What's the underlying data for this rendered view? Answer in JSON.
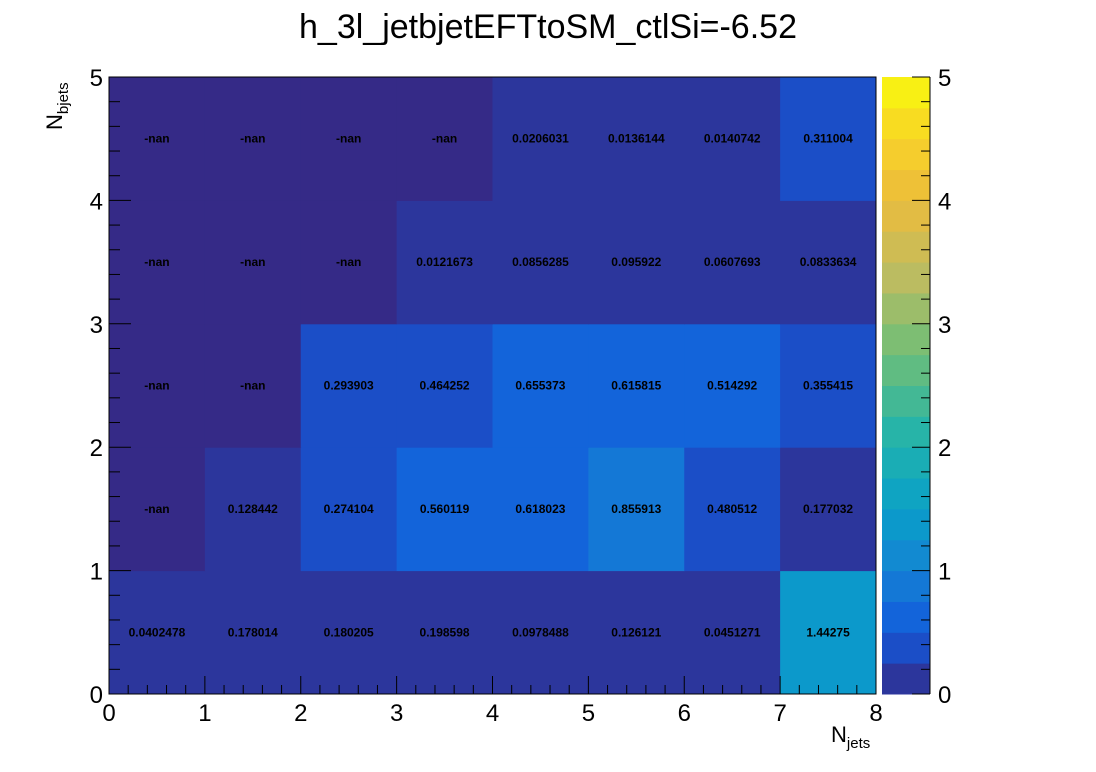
{
  "chart_data": {
    "type": "heatmap",
    "title": "h_3l_jetbjetEFTtoSM_ctlSi=-6.52",
    "xlabel": {
      "main": "N",
      "sub": "jets"
    },
    "ylabel": {
      "main": "N",
      "sub": "bjets"
    },
    "x_edges": [
      0,
      1,
      2,
      3,
      4,
      5,
      6,
      7,
      8
    ],
    "y_edges": [
      0,
      1,
      2,
      3,
      4,
      5
    ],
    "xlim": [
      0,
      8
    ],
    "ylim": [
      0,
      5
    ],
    "zlim": [
      0,
      5
    ],
    "x_ticks": [
      "0",
      "1",
      "2",
      "3",
      "4",
      "5",
      "6",
      "7",
      "8"
    ],
    "y_ticks": [
      "0",
      "1",
      "2",
      "3",
      "4",
      "5"
    ],
    "z_ticks": [
      "0",
      "1",
      "2",
      "3",
      "4",
      "5"
    ],
    "palette": "parula",
    "palette_levels": 20,
    "cells": [
      {
        "x": 0.5,
        "y": 0.5,
        "value": 0.0402478,
        "label": "0.0402478"
      },
      {
        "x": 1.5,
        "y": 0.5,
        "value": 0.178014,
        "label": "0.178014"
      },
      {
        "x": 2.5,
        "y": 0.5,
        "value": 0.180205,
        "label": "0.180205"
      },
      {
        "x": 3.5,
        "y": 0.5,
        "value": 0.198598,
        "label": "0.198598"
      },
      {
        "x": 4.5,
        "y": 0.5,
        "value": 0.0978488,
        "label": "0.0978488"
      },
      {
        "x": 5.5,
        "y": 0.5,
        "value": 0.126121,
        "label": "0.126121"
      },
      {
        "x": 6.5,
        "y": 0.5,
        "value": 0.0451271,
        "label": "0.0451271"
      },
      {
        "x": 7.5,
        "y": 0.5,
        "value": 1.44275,
        "label": "1.44275"
      },
      {
        "x": 0.5,
        "y": 1.5,
        "value": null,
        "label": "-nan"
      },
      {
        "x": 1.5,
        "y": 1.5,
        "value": 0.128442,
        "label": "0.128442"
      },
      {
        "x": 2.5,
        "y": 1.5,
        "value": 0.274104,
        "label": "0.274104"
      },
      {
        "x": 3.5,
        "y": 1.5,
        "value": 0.560119,
        "label": "0.560119"
      },
      {
        "x": 4.5,
        "y": 1.5,
        "value": 0.618023,
        "label": "0.618023"
      },
      {
        "x": 5.5,
        "y": 1.5,
        "value": 0.855913,
        "label": "0.855913"
      },
      {
        "x": 6.5,
        "y": 1.5,
        "value": 0.480512,
        "label": "0.480512"
      },
      {
        "x": 7.5,
        "y": 1.5,
        "value": 0.177032,
        "label": "0.177032"
      },
      {
        "x": 0.5,
        "y": 2.5,
        "value": null,
        "label": "-nan"
      },
      {
        "x": 1.5,
        "y": 2.5,
        "value": null,
        "label": "-nan"
      },
      {
        "x": 2.5,
        "y": 2.5,
        "value": 0.293903,
        "label": "0.293903"
      },
      {
        "x": 3.5,
        "y": 2.5,
        "value": 0.464252,
        "label": "0.464252"
      },
      {
        "x": 4.5,
        "y": 2.5,
        "value": 0.655373,
        "label": "0.655373"
      },
      {
        "x": 5.5,
        "y": 2.5,
        "value": 0.615815,
        "label": "0.615815"
      },
      {
        "x": 6.5,
        "y": 2.5,
        "value": 0.514292,
        "label": "0.514292"
      },
      {
        "x": 7.5,
        "y": 2.5,
        "value": 0.355415,
        "label": "0.355415"
      },
      {
        "x": 0.5,
        "y": 3.5,
        "value": null,
        "label": "-nan"
      },
      {
        "x": 1.5,
        "y": 3.5,
        "value": null,
        "label": "-nan"
      },
      {
        "x": 2.5,
        "y": 3.5,
        "value": null,
        "label": "-nan"
      },
      {
        "x": 3.5,
        "y": 3.5,
        "value": 0.0121673,
        "label": "0.0121673"
      },
      {
        "x": 4.5,
        "y": 3.5,
        "value": 0.0856285,
        "label": "0.0856285"
      },
      {
        "x": 5.5,
        "y": 3.5,
        "value": 0.095922,
        "label": "0.095922"
      },
      {
        "x": 6.5,
        "y": 3.5,
        "value": 0.0607693,
        "label": "0.0607693"
      },
      {
        "x": 7.5,
        "y": 3.5,
        "value": 0.0833634,
        "label": "0.0833634"
      },
      {
        "x": 0.5,
        "y": 4.5,
        "value": null,
        "label": "-nan"
      },
      {
        "x": 1.5,
        "y": 4.5,
        "value": null,
        "label": "-nan"
      },
      {
        "x": 2.5,
        "y": 4.5,
        "value": null,
        "label": "-nan"
      },
      {
        "x": 3.5,
        "y": 4.5,
        "value": null,
        "label": "-nan"
      },
      {
        "x": 4.5,
        "y": 4.5,
        "value": 0.0206031,
        "label": "0.0206031"
      },
      {
        "x": 5.5,
        "y": 4.5,
        "value": 0.0136144,
        "label": "0.0136144"
      },
      {
        "x": 6.5,
        "y": 4.5,
        "value": 0.0140742,
        "label": "0.0140742"
      },
      {
        "x": 7.5,
        "y": 4.5,
        "value": 0.311004,
        "label": "0.311004"
      }
    ]
  }
}
